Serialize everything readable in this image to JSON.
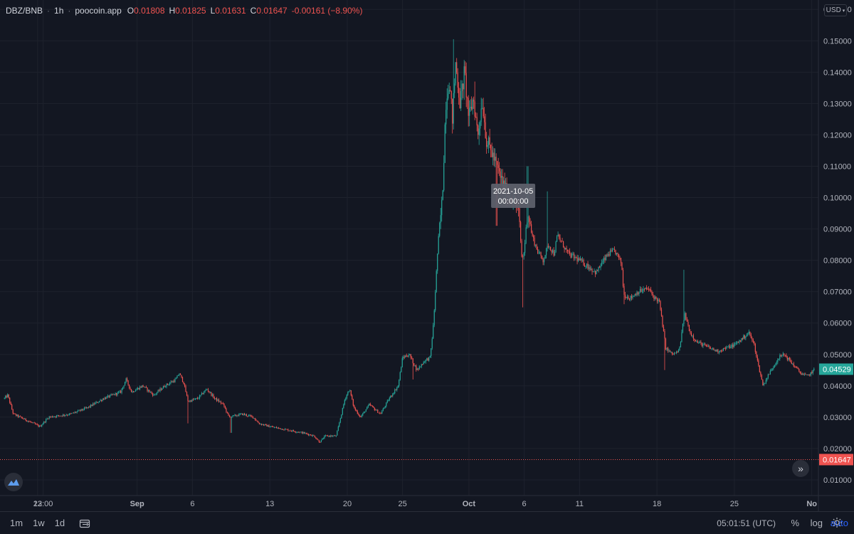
{
  "legend": {
    "symbol": "DBZ/BNB",
    "interval": "1h",
    "source": "poocoin.app",
    "open_label": "O",
    "open": "0.01808",
    "high_label": "H",
    "high": "0.01825",
    "low_label": "L",
    "low": "0.01631",
    "close_label": "C",
    "close": "0.01647",
    "change": "-0.00161 (−8.90%)"
  },
  "currency": "USD",
  "timeframes": [
    "1m",
    "1w",
    "1d"
  ],
  "clock": "05:01:51 (UTC)",
  "scale_options": {
    "percent": "%",
    "log": "log",
    "auto": "auto"
  },
  "colors": {
    "background": "#131722",
    "up": "#26a69a",
    "down": "#ef5350",
    "grid": "#1e222d",
    "text": "#b2b5be"
  },
  "chart_data": {
    "type": "candlestick",
    "title": "",
    "ylim": [
      0.005,
      0.163
    ],
    "y_ticks": [
      "0.16000",
      "0.15000",
      "0.14000",
      "0.13000",
      "0.12000",
      "0.11000",
      "0.10000",
      "0.09000",
      "0.08000",
      "0.07000",
      "0.06000",
      "0.05000",
      "0.04000",
      "0.03000",
      "0.02000",
      "0.01000"
    ],
    "x_ticks": [
      {
        "label": "23",
        "day": 3.0
      },
      {
        "label": "12:00",
        "day": 3.5
      },
      {
        "label": "Sep",
        "day": 12.0
      },
      {
        "label": "6",
        "day": 17.0
      },
      {
        "label": "13",
        "day": 24.0
      },
      {
        "label": "20",
        "day": 31.0
      },
      {
        "label": "25",
        "day": 36.0
      },
      {
        "label": "Oct",
        "day": 42.0
      },
      {
        "label": "6",
        "day": 47.0
      },
      {
        "label": "11",
        "day": 52.0
      },
      {
        "label": "18",
        "day": 59.0
      },
      {
        "label": "25",
        "day": 66.0
      },
      {
        "label": "No",
        "day": 73.0
      }
    ],
    "x_axis_note": "day offsets relative to Aug 20, 2021",
    "price_path": [
      [
        0.0,
        0.036
      ],
      [
        0.3,
        0.037
      ],
      [
        0.8,
        0.031
      ],
      [
        2.0,
        0.029
      ],
      [
        3.2,
        0.027
      ],
      [
        4.0,
        0.03
      ],
      [
        6.0,
        0.031
      ],
      [
        7.5,
        0.033
      ],
      [
        9.0,
        0.036
      ],
      [
        10.5,
        0.038
      ],
      [
        11.0,
        0.042
      ],
      [
        11.5,
        0.038
      ],
      [
        12.5,
        0.04
      ],
      [
        13.5,
        0.037
      ],
      [
        14.5,
        0.04
      ],
      [
        15.5,
        0.042
      ],
      [
        15.8,
        0.044
      ],
      [
        16.2,
        0.041
      ],
      [
        16.6,
        0.035
      ],
      [
        17.5,
        0.036
      ],
      [
        18.3,
        0.039
      ],
      [
        19.0,
        0.036
      ],
      [
        19.8,
        0.034
      ],
      [
        20.3,
        0.03
      ],
      [
        21.5,
        0.031
      ],
      [
        22.5,
        0.03
      ],
      [
        23.0,
        0.028
      ],
      [
        24.0,
        0.027
      ],
      [
        25.5,
        0.026
      ],
      [
        27.0,
        0.025
      ],
      [
        28.0,
        0.024
      ],
      [
        28.5,
        0.022
      ],
      [
        29.0,
        0.024
      ],
      [
        30.0,
        0.024
      ],
      [
        30.4,
        0.03
      ],
      [
        30.8,
        0.036
      ],
      [
        31.2,
        0.039
      ],
      [
        31.6,
        0.033
      ],
      [
        32.2,
        0.03
      ],
      [
        33.0,
        0.034
      ],
      [
        34.0,
        0.031
      ],
      [
        34.8,
        0.036
      ],
      [
        35.6,
        0.04
      ],
      [
        36.0,
        0.049
      ],
      [
        36.6,
        0.05
      ],
      [
        37.3,
        0.045
      ],
      [
        38.0,
        0.048
      ],
      [
        38.5,
        0.049
      ],
      [
        38.8,
        0.06
      ],
      [
        39.2,
        0.085
      ],
      [
        39.6,
        0.1
      ],
      [
        39.9,
        0.13
      ],
      [
        40.2,
        0.138
      ],
      [
        40.5,
        0.125
      ],
      [
        40.8,
        0.143
      ],
      [
        41.2,
        0.13
      ],
      [
        41.6,
        0.14
      ],
      [
        42.0,
        0.125
      ],
      [
        42.4,
        0.132
      ],
      [
        42.8,
        0.12
      ],
      [
        43.2,
        0.131
      ],
      [
        43.6,
        0.118
      ],
      [
        44.0,
        0.115
      ],
      [
        44.5,
        0.11
      ],
      [
        45.0,
        0.105
      ],
      [
        45.5,
        0.101
      ],
      [
        46.0,
        0.1
      ],
      [
        46.5,
        0.095
      ],
      [
        46.8,
        0.08
      ],
      [
        47.0,
        0.083
      ],
      [
        47.3,
        0.096
      ],
      [
        47.7,
        0.088
      ],
      [
        48.2,
        0.083
      ],
      [
        48.7,
        0.08
      ],
      [
        49.2,
        0.085
      ],
      [
        49.7,
        0.082
      ],
      [
        50.0,
        0.088
      ],
      [
        50.5,
        0.085
      ],
      [
        51.0,
        0.082
      ],
      [
        52.0,
        0.08
      ],
      [
        52.8,
        0.078
      ],
      [
        53.5,
        0.076
      ],
      [
        54.0,
        0.079
      ],
      [
        54.6,
        0.082
      ],
      [
        55.2,
        0.083
      ],
      [
        55.8,
        0.079
      ],
      [
        56.0,
        0.069
      ],
      [
        56.6,
        0.068
      ],
      [
        57.3,
        0.07
      ],
      [
        58.2,
        0.071
      ],
      [
        58.8,
        0.068
      ],
      [
        59.2,
        0.067
      ],
      [
        59.8,
        0.052
      ],
      [
        60.4,
        0.05
      ],
      [
        61.0,
        0.051
      ],
      [
        61.5,
        0.063
      ],
      [
        62.0,
        0.057
      ],
      [
        62.6,
        0.054
      ],
      [
        63.2,
        0.053
      ],
      [
        63.8,
        0.052
      ],
      [
        64.5,
        0.051
      ],
      [
        65.2,
        0.052
      ],
      [
        66.0,
        0.053
      ],
      [
        66.7,
        0.055
      ],
      [
        67.3,
        0.057
      ],
      [
        67.8,
        0.053
      ],
      [
        68.2,
        0.046
      ],
      [
        68.6,
        0.04
      ],
      [
        69.0,
        0.043
      ],
      [
        69.5,
        0.046
      ],
      [
        70.0,
        0.049
      ],
      [
        70.5,
        0.05
      ],
      [
        71.0,
        0.048
      ],
      [
        71.5,
        0.046
      ],
      [
        72.0,
        0.044
      ],
      [
        72.6,
        0.043
      ],
      [
        73.2,
        0.045
      ]
    ],
    "spikes": [
      {
        "day": 16.6,
        "low": 0.028
      },
      {
        "day": 20.5,
        "low": 0.025
      },
      {
        "day": 36.9,
        "low": 0.042
      },
      {
        "day": 40.6,
        "high": 0.1505
      },
      {
        "day": 42.5,
        "high": 0.137
      },
      {
        "day": 46.9,
        "low": 0.065
      },
      {
        "day": 47.3,
        "high": 0.11
      },
      {
        "day": 49.1,
        "high": 0.102
      },
      {
        "day": 56.0,
        "low": 0.066
      },
      {
        "day": 61.4,
        "high": 0.077
      },
      {
        "day": 59.7,
        "low": 0.045
      },
      {
        "day": 44.5,
        "low": 0.091
      }
    ],
    "last_price": "0.04529",
    "close_price_line": "0.01647",
    "crosshair_label": [
      "2021-10-05",
      "00:00:00"
    ]
  }
}
